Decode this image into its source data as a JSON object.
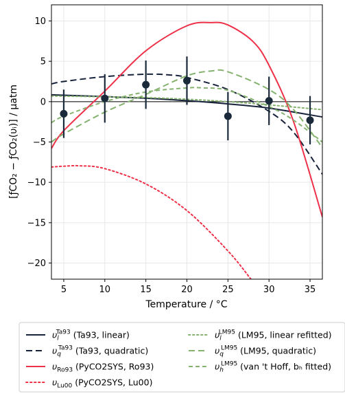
{
  "chart_data": {
    "type": "line",
    "xlabel": "Temperature / °C",
    "ylabel": "[ƒCO₂ − ƒCO₂(υᵢ)] / µatm",
    "xlim": [
      3.5,
      36.5
    ],
    "ylim": [
      -22,
      12
    ],
    "xticks": [
      5,
      10,
      15,
      20,
      25,
      30,
      35
    ],
    "yticks": [
      10,
      5,
      0,
      -5,
      -10,
      -15,
      -20
    ],
    "grid": true,
    "legend_position": "below-plot",
    "observations": {
      "x": [
        5,
        10,
        15,
        20,
        25,
        30,
        35
      ],
      "y": [
        -1.5,
        0.4,
        2.1,
        2.6,
        -1.8,
        0.1,
        -2.3
      ],
      "err": [
        3.0,
        3.0,
        3.0,
        3.0,
        3.0,
        3.0,
        3.0
      ],
      "color": "#1b2a3b"
    },
    "series": [
      {
        "key": "ta93_linear",
        "name_main": "υ",
        "name_sub": "l",
        "name_sup": "Ta93",
        "name_rest": " (Ta93, linear)",
        "color": "#16213a",
        "dash": "solid",
        "legend_col": 0,
        "legend_row": 0,
        "x": [
          3.5,
          10,
          15,
          20,
          25,
          30,
          36.5
        ],
        "y": [
          0.85,
          0.62,
          0.42,
          0.12,
          -0.28,
          -0.8,
          -1.9
        ]
      },
      {
        "key": "ta93_quadratic",
        "name_main": "υ",
        "name_sub": "q",
        "name_sup": "Ta93",
        "name_rest": " (Ta93, quadratic)",
        "color": "#16213a",
        "dash": "long",
        "legend_col": 0,
        "legend_row": 1,
        "x": [
          3.5,
          5,
          10,
          15,
          18,
          20,
          25,
          30,
          33,
          36.5
        ],
        "y": [
          2.2,
          2.5,
          3.1,
          3.4,
          3.3,
          3.0,
          1.5,
          -1.2,
          -3.8,
          -9.0
        ]
      },
      {
        "key": "ro93",
        "name_main": "υ",
        "name_sub": "Ro93",
        "name_sup": "",
        "name_rest": " (PyCO2SYS, Ro93)",
        "color": "#ee3048",
        "dash": "solid",
        "legend_col": 0,
        "legend_row": 2,
        "x": [
          3.5,
          5,
          10,
          15,
          20,
          23,
          25,
          28,
          30,
          33,
          36.5
        ],
        "y": [
          -5.8,
          -3.6,
          1.3,
          6.3,
          9.4,
          9.8,
          9.5,
          7.5,
          4.5,
          -2.5,
          -14.3
        ]
      },
      {
        "key": "lu00",
        "name_main": "υ",
        "name_sub": "Lu00",
        "name_sup": "",
        "name_rest": " (PyCO2SYS, Lu00)",
        "color": "#ee3048",
        "dash": "dotted",
        "legend_col": 0,
        "legend_row": 3,
        "x": [
          3.5,
          5,
          7,
          10,
          15,
          20,
          25,
          27.8
        ],
        "y": [
          -8.1,
          -8.0,
          -7.95,
          -8.3,
          -10.2,
          -13.5,
          -18.5,
          -22.0
        ]
      },
      {
        "key": "lm95_linear",
        "name_main": "υ",
        "name_sub": "l",
        "name_sup": "LM95",
        "name_rest": " (LM95, linear refitted)",
        "color": "#85b26e",
        "dash": "dotted",
        "legend_col": 1,
        "legend_row": 0,
        "x": [
          3.5,
          10,
          15,
          20,
          25,
          30,
          36.5
        ],
        "y": [
          0.7,
          0.6,
          0.5,
          0.3,
          0.0,
          -0.4,
          -1.0
        ]
      },
      {
        "key": "lm95_quadratic",
        "name_main": "υ",
        "name_sub": "q",
        "name_sup": "LM95",
        "name_rest": " (LM95, quadratic)",
        "color": "#85b26e",
        "dash": "long",
        "legend_col": 1,
        "legend_row": 1,
        "x": [
          3.5,
          5,
          10,
          15,
          20,
          23,
          25,
          30,
          33,
          36.5
        ],
        "y": [
          -5.0,
          -4.0,
          -1.3,
          0.9,
          3.2,
          3.8,
          3.7,
          1.5,
          -1.0,
          -5.7
        ]
      },
      {
        "key": "lm95_vanthoff",
        "name_main": "υ",
        "name_sub": "h",
        "name_sup": "LM95",
        "name_rest": " (van 't Hoff, bₕ fitted)",
        "color": "#85b26e",
        "dash": "medium",
        "legend_col": 1,
        "legend_row": 2,
        "x": [
          3.5,
          5,
          10,
          15,
          20,
          22,
          25,
          30,
          33,
          36.5
        ],
        "y": [
          -2.6,
          -1.8,
          0.0,
          1.2,
          1.7,
          1.7,
          1.4,
          -0.6,
          -2.3,
          -5.0
        ]
      }
    ]
  }
}
